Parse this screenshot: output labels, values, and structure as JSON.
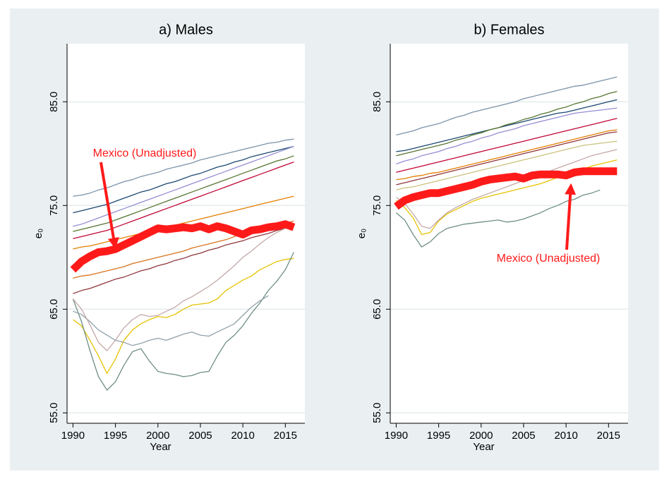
{
  "chart_data": [
    {
      "type": "line",
      "title": "a) Males",
      "x_label": "Year",
      "y_label": "e₀",
      "x": [
        1990,
        1991,
        1992,
        1993,
        1994,
        1995,
        1996,
        1997,
        1998,
        1999,
        2000,
        2001,
        2002,
        2003,
        2004,
        2005,
        2006,
        2007,
        2008,
        2009,
        2010,
        2011,
        2012,
        2013,
        2014,
        2015,
        2016
      ],
      "xlim": [
        1989.3,
        2017.3
      ],
      "ylim": [
        54,
        90.6
      ],
      "xticks": [
        1990,
        1995,
        2000,
        2005,
        2010,
        2015
      ],
      "yticks": [
        {
          "value": 55,
          "label": "55.0"
        },
        {
          "value": 65,
          "label": "65.0"
        },
        {
          "value": 75,
          "label": "75.0"
        },
        {
          "value": 85,
          "label": "85.0"
        }
      ],
      "grid": true,
      "annotation": "Mexico (Unadjusted)",
      "series": [
        {
          "color": "#7b92a8",
          "values": [
            75.9,
            76.0,
            76.2,
            76.5,
            76.7,
            77.0,
            77.3,
            77.5,
            77.8,
            78.0,
            78.2,
            78.5,
            78.7,
            78.9,
            79.1,
            79.4,
            79.6,
            79.8,
            80.0,
            80.2,
            80.4,
            80.6,
            80.8,
            81.0,
            81.1,
            81.3,
            81.4
          ]
        },
        {
          "color": "#1a476f",
          "values": [
            74.3,
            74.5,
            74.7,
            74.9,
            75.1,
            75.4,
            75.7,
            76.0,
            76.3,
            76.5,
            76.8,
            77.1,
            77.3,
            77.6,
            77.9,
            78.1,
            78.4,
            78.7,
            78.9,
            79.2,
            79.4,
            79.7,
            79.9,
            80.1,
            80.3,
            80.5,
            80.7
          ]
        },
        {
          "color": "#55752f",
          "values": [
            72.5,
            72.7,
            72.9,
            73.1,
            73.3,
            73.6,
            73.9,
            74.2,
            74.5,
            74.8,
            75.1,
            75.4,
            75.7,
            76.0,
            76.3,
            76.6,
            76.9,
            77.2,
            77.5,
            77.8,
            78.1,
            78.4,
            78.7,
            79.0,
            79.3,
            79.5,
            79.8
          ]
        },
        {
          "color": "#c10534",
          "values": [
            71.8,
            72.0,
            72.2,
            72.4,
            72.6,
            72.9,
            73.2,
            73.5,
            73.8,
            74.1,
            74.4,
            74.7,
            75.0,
            75.3,
            75.6,
            75.9,
            76.2,
            76.5,
            76.8,
            77.1,
            77.4,
            77.7,
            78.0,
            78.3,
            78.6,
            78.9,
            79.2
          ]
        },
        {
          "color": "#938dd2",
          "values": [
            73.0,
            73.2,
            73.5,
            73.8,
            74.1,
            74.4,
            74.7,
            75.0,
            75.3,
            75.6,
            75.9,
            76.2,
            76.5,
            76.8,
            77.1,
            77.4,
            77.7,
            78.0,
            78.3,
            78.6,
            78.9,
            79.2,
            79.5,
            79.8,
            80.1,
            80.4,
            80.7
          ]
        },
        {
          "color": "#e37e00",
          "values": [
            70.8,
            71.0,
            71.1,
            71.3,
            71.5,
            71.7,
            71.9,
            72.1,
            72.3,
            72.5,
            72.7,
            72.9,
            73.1,
            73.3,
            73.5,
            73.7,
            73.9,
            74.1,
            74.3,
            74.5,
            74.7,
            74.9,
            75.1,
            75.3,
            75.5,
            75.7,
            75.9
          ]
        },
        {
          "color": "#90353b",
          "values": [
            66.5,
            66.8,
            67.0,
            67.3,
            67.6,
            67.9,
            68.1,
            68.4,
            68.7,
            68.9,
            69.2,
            69.4,
            69.7,
            69.9,
            70.2,
            70.4,
            70.7,
            70.9,
            71.2,
            71.4,
            71.6,
            71.9,
            72.1,
            72.3,
            72.6,
            72.8,
            73.0
          ]
        },
        {
          "color": "#e6c200",
          "values": [
            64.0,
            63.4,
            62.0,
            60.5,
            58.8,
            60.2,
            62.0,
            63.0,
            63.6,
            64.0,
            64.3,
            64.2,
            64.5,
            65.0,
            65.4,
            65.5,
            65.6,
            66.0,
            66.8,
            67.3,
            67.8,
            68.2,
            68.8,
            69.2,
            69.6,
            69.8,
            69.9
          ]
        },
        {
          "color": "#6e8e84",
          "values": [
            66.0,
            63.8,
            61.0,
            58.5,
            57.2,
            58.0,
            59.6,
            60.9,
            61.2,
            60.0,
            59.0,
            58.8,
            58.7,
            58.5,
            58.6,
            58.9,
            59.0,
            60.5,
            61.8,
            62.5,
            63.4,
            64.6,
            65.6,
            66.8,
            67.7,
            68.8,
            70.5
          ]
        },
        {
          "color": "#8fa0a8",
          "values": [
            64.8,
            64.5,
            63.8,
            63.0,
            62.5,
            62.0,
            61.8,
            61.5,
            61.7,
            62.0,
            62.2,
            62.0,
            62.3,
            62.6,
            62.8,
            62.5,
            62.4,
            62.8,
            63.2,
            63.6,
            64.4,
            65.2,
            65.8,
            66.3,
            null,
            null,
            null
          ]
        },
        {
          "color": "#d9731c",
          "values": [
            68.0,
            68.2,
            68.3,
            68.5,
            68.7,
            68.9,
            69.1,
            69.4,
            69.6,
            69.8,
            70.0,
            70.2,
            70.4,
            70.6,
            70.9,
            71.1,
            71.3,
            71.5,
            71.7,
            72.0,
            72.3,
            72.5,
            72.7,
            72.9,
            73.1,
            73.3,
            73.5
          ]
        },
        {
          "color": "#c4a8a8",
          "values": [
            66.0,
            65.0,
            63.5,
            61.8,
            61.0,
            62.0,
            63.2,
            64.0,
            64.5,
            64.3,
            64.4,
            64.8,
            65.2,
            65.8,
            66.2,
            66.7,
            67.2,
            67.8,
            68.5,
            69.2,
            70.0,
            70.6,
            71.3,
            71.9,
            72.4,
            72.8,
            73.0
          ]
        },
        {
          "color": "#ff1a1a",
          "highlight": true,
          "values": [
            68.8,
            69.6,
            70.1,
            70.5,
            70.6,
            70.8,
            71.2,
            71.6,
            72.0,
            72.4,
            72.8,
            72.7,
            72.8,
            72.9,
            72.8,
            73.0,
            72.7,
            73.0,
            72.8,
            72.5,
            72.2,
            72.6,
            72.7,
            72.9,
            73.0,
            73.2,
            72.9
          ]
        }
      ]
    },
    {
      "type": "line",
      "title": "b) Females",
      "x_label": "Year",
      "y_label": "e₀",
      "x": [
        1990,
        1991,
        1992,
        1993,
        1994,
        1995,
        1996,
        1997,
        1998,
        1999,
        2000,
        2001,
        2002,
        2003,
        2004,
        2005,
        2006,
        2007,
        2008,
        2009,
        2010,
        2011,
        2012,
        2013,
        2014,
        2015,
        2016
      ],
      "xlim": [
        1989.3,
        2017.3
      ],
      "ylim": [
        54,
        90.6
      ],
      "xticks": [
        1990,
        1995,
        2000,
        2005,
        2010,
        2015
      ],
      "yticks": [
        {
          "value": 55,
          "label": "55.0"
        },
        {
          "value": 65,
          "label": "65.0"
        },
        {
          "value": 75,
          "label": "75.0"
        },
        {
          "value": 85,
          "label": "85.0"
        }
      ],
      "grid": true,
      "annotation": "Mexico (Unadjusted)",
      "series": [
        {
          "color": "#7b92a8",
          "values": [
            81.8,
            82.0,
            82.2,
            82.5,
            82.7,
            82.9,
            83.2,
            83.5,
            83.7,
            84.0,
            84.2,
            84.4,
            84.6,
            84.8,
            85.0,
            85.3,
            85.5,
            85.7,
            85.9,
            86.1,
            86.3,
            86.5,
            86.6,
            86.8,
            87.0,
            87.2,
            87.4
          ]
        },
        {
          "color": "#1a476f",
          "values": [
            80.2,
            80.3,
            80.5,
            80.7,
            80.9,
            81.1,
            81.3,
            81.5,
            81.7,
            81.9,
            82.1,
            82.3,
            82.5,
            82.7,
            82.9,
            83.1,
            83.3,
            83.5,
            83.7,
            83.9,
            84.0,
            84.2,
            84.4,
            84.6,
            84.8,
            85.0,
            85.2
          ]
        },
        {
          "color": "#55752f",
          "values": [
            79.8,
            80.0,
            80.2,
            80.4,
            80.6,
            80.8,
            81.0,
            81.3,
            81.5,
            81.8,
            82.0,
            82.3,
            82.5,
            82.8,
            83.0,
            83.3,
            83.5,
            83.8,
            84.0,
            84.3,
            84.5,
            84.8,
            85.0,
            85.3,
            85.5,
            85.8,
            86.0
          ]
        },
        {
          "color": "#c10534",
          "values": [
            78.2,
            78.4,
            78.6,
            78.8,
            79.0,
            79.2,
            79.4,
            79.6,
            79.8,
            80.0,
            80.2,
            80.4,
            80.6,
            80.8,
            81.0,
            81.2,
            81.4,
            81.6,
            81.8,
            82.0,
            82.2,
            82.4,
            82.6,
            82.8,
            83.0,
            83.2,
            83.4
          ]
        },
        {
          "color": "#938dd2",
          "values": [
            79.0,
            79.3,
            79.5,
            79.8,
            80.0,
            80.2,
            80.5,
            80.7,
            81.0,
            81.2,
            81.5,
            81.7,
            82.0,
            82.2,
            82.4,
            82.7,
            82.9,
            83.1,
            83.3,
            83.5,
            83.7,
            83.9,
            84.0,
            84.1,
            84.2,
            84.3,
            84.4
          ]
        },
        {
          "color": "#e37e00",
          "values": [
            77.5,
            77.6,
            77.8,
            77.9,
            78.1,
            78.2,
            78.4,
            78.6,
            78.8,
            79.0,
            79.2,
            79.4,
            79.6,
            79.8,
            80.0,
            80.2,
            80.4,
            80.6,
            80.8,
            81.0,
            81.2,
            81.4,
            81.6,
            81.8,
            82.0,
            82.2,
            82.3
          ]
        },
        {
          "color": "#cac27e",
          "values": [
            76.5,
            76.7,
            76.8,
            77.0,
            77.2,
            77.4,
            77.6,
            77.8,
            78.0,
            78.2,
            78.4,
            78.6,
            78.8,
            79.0,
            79.2,
            79.4,
            79.6,
            79.8,
            80.0,
            80.2,
            80.4,
            80.6,
            80.8,
            80.9,
            81.0,
            81.1,
            81.2
          ]
        },
        {
          "color": "#e6c200",
          "values": [
            75.5,
            74.8,
            73.8,
            72.2,
            72.4,
            73.5,
            74.2,
            74.6,
            75.0,
            75.4,
            75.7,
            75.9,
            76.1,
            76.3,
            76.5,
            76.7,
            76.9,
            77.1,
            77.4,
            77.7,
            78.0,
            78.2,
            78.5,
            78.8,
            79.0,
            79.2,
            79.4
          ]
        },
        {
          "color": "#6e8e84",
          "values": [
            74.3,
            73.6,
            72.2,
            71.0,
            71.5,
            72.3,
            72.8,
            73.0,
            73.2,
            73.3,
            73.4,
            73.5,
            73.6,
            73.4,
            73.5,
            73.7,
            74.0,
            74.3,
            74.7,
            75.0,
            75.4,
            75.6,
            76.0,
            76.2,
            76.5,
            null,
            null
          ]
        },
        {
          "color": "#90353b",
          "values": [
            77.0,
            77.2,
            77.4,
            77.6,
            77.8,
            78.0,
            78.2,
            78.4,
            78.6,
            78.8,
            79.0,
            79.2,
            79.4,
            79.6,
            79.8,
            80.0,
            80.2,
            80.4,
            80.6,
            80.8,
            81.0,
            81.2,
            81.4,
            81.6,
            81.8,
            82.0,
            82.1
          ]
        },
        {
          "color": "#c4a8a8",
          "values": [
            75.8,
            75.2,
            74.2,
            73.0,
            72.8,
            73.6,
            74.3,
            74.8,
            75.2,
            75.6,
            75.9,
            76.2,
            76.5,
            76.8,
            77.1,
            77.4,
            77.7,
            78.0,
            78.3,
            78.6,
            78.9,
            79.2,
            79.5,
            79.8,
            80.0,
            80.2,
            80.4
          ]
        },
        {
          "color": "#ff1a1a",
          "highlight": true,
          "values": [
            74.9,
            75.5,
            75.8,
            76.0,
            76.2,
            76.2,
            76.4,
            76.6,
            76.8,
            77.0,
            77.3,
            77.5,
            77.6,
            77.7,
            77.8,
            77.6,
            77.9,
            78.0,
            78.0,
            78.0,
            77.9,
            78.2,
            78.3,
            78.3,
            78.3,
            78.3,
            78.3
          ]
        }
      ]
    }
  ]
}
